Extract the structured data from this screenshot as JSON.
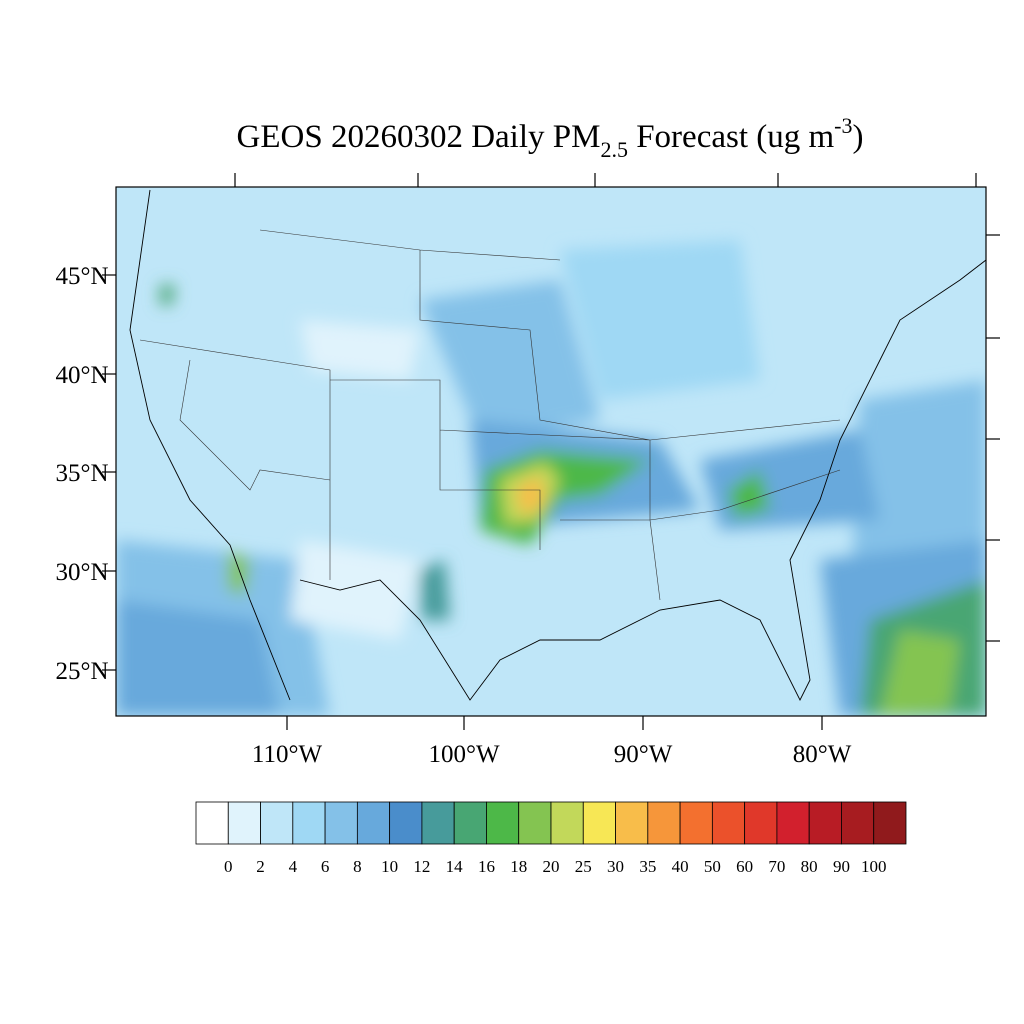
{
  "map": {
    "title": {
      "main": "GEOS 20260302 Daily PM",
      "subscript": "2.5",
      "rest": " Forecast (ug m",
      "superscript": "-3",
      "close": ")"
    },
    "lat_labels": [
      "45°N",
      "40°N",
      "35°N",
      "30°N",
      "25°N"
    ],
    "lon_labels": [
      "110°W",
      "100°W",
      "90°W",
      "80°W"
    ],
    "colorbar": {
      "levels": [
        "0",
        "2",
        "4",
        "6",
        "8",
        "10",
        "12",
        "14",
        "16",
        "18",
        "20",
        "25",
        "30",
        "35",
        "40",
        "50",
        "60",
        "70",
        "80",
        "90",
        "100"
      ],
      "colors": [
        "#ffffff",
        "#e0f3fc",
        "#bfe6f8",
        "#9fd8f4",
        "#84c1e8",
        "#67a9dc",
        "#4a8dcb",
        "#479b9b",
        "#48a673",
        "#4db848",
        "#84c451",
        "#c2d85a",
        "#f7e755",
        "#f8bd4a",
        "#f6963a",
        "#f3702f",
        "#eb512b",
        "#e0382a",
        "#d2202d",
        "#b81c25",
        "#a71c20",
        "#901a1c"
      ]
    }
  }
}
